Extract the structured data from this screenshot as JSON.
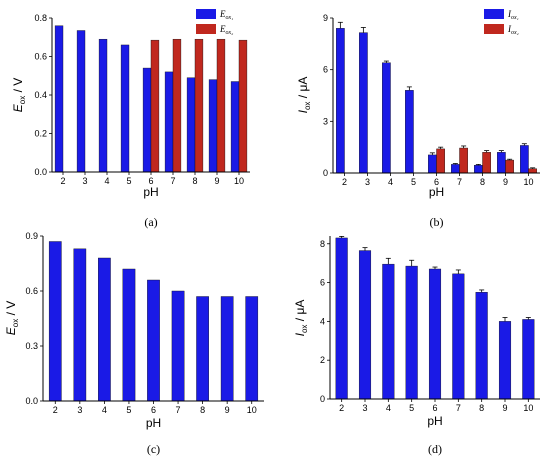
{
  "colors": {
    "blue": "#1a1ae6",
    "red": "#c0281e",
    "olive": "#6b6a10",
    "axis": "#000000"
  },
  "chart_data": [
    {
      "id": "a",
      "type": "bar",
      "panel_label": "(a)",
      "x": [
        "2",
        "3",
        "4",
        "5",
        "6",
        "7",
        "8",
        "9",
        "10"
      ],
      "xlabel": "pH",
      "ylabel_main": "E",
      "ylabel_sub": "ox",
      "ylabel_unit": " / V",
      "ylim": [
        0,
        0.8
      ],
      "yticks": [
        "0.0",
        "0.2",
        "0.4",
        "0.6",
        "0.8"
      ],
      "ytick_values": [
        0,
        0.2,
        0.4,
        0.6,
        0.8
      ],
      "grid": false,
      "legend": "top-right",
      "series": [
        {
          "legend_main": "E",
          "legend_sub": "ox₁",
          "color": "#1a1ae6",
          "values": [
            0.76,
            0.735,
            0.69,
            0.66,
            0.54,
            0.52,
            0.49,
            0.48,
            0.47
          ]
        },
        {
          "legend_main": "E",
          "legend_sub": "ox₂",
          "color": "#c0281e",
          "values": [
            null,
            null,
            null,
            null,
            0.685,
            0.69,
            0.69,
            0.69,
            0.685
          ]
        }
      ]
    },
    {
      "id": "b",
      "type": "bar",
      "panel_label": "(b)",
      "x": [
        "2",
        "3",
        "4",
        "5",
        "6",
        "7",
        "8",
        "9",
        "10"
      ],
      "xlabel": "pH",
      "ylabel_main": "I",
      "ylabel_sub": "ox",
      "ylabel_unit": " / μA",
      "ylim": [
        0,
        9
      ],
      "yticks": [
        "0",
        "3",
        "6",
        "9"
      ],
      "ytick_values": [
        0,
        3,
        6,
        9
      ],
      "grid": false,
      "legend": "top-right",
      "series": [
        {
          "legend_main": "I",
          "legend_sub": "ox₁",
          "color": "#1a1ae6",
          "values": [
            8.4,
            8.15,
            6.4,
            4.8,
            1.05,
            0.5,
            0.45,
            1.2,
            1.6
          ],
          "errors": [
            0.35,
            0.3,
            0.1,
            0.2,
            0.12,
            0.05,
            0.05,
            0.1,
            0.1
          ]
        },
        {
          "legend_main": "I",
          "legend_sub": "ox₂",
          "color": "#c0281e",
          "values": [
            null,
            null,
            null,
            null,
            1.4,
            1.45,
            1.2,
            0.75,
            0.25
          ],
          "errors": [
            null,
            null,
            null,
            null,
            0.1,
            0.12,
            0.1,
            0.05,
            0.05
          ]
        }
      ]
    },
    {
      "id": "c",
      "type": "bar",
      "panel_label": "(c)",
      "x": [
        "2",
        "3",
        "4",
        "5",
        "6",
        "7",
        "8",
        "9",
        "10"
      ],
      "xlabel": "pH",
      "ylabel_main": "E",
      "ylabel_sub": "ox",
      "ylabel_unit": " / V",
      "ylim": [
        0,
        0.9
      ],
      "yticks": [
        "0.0",
        "0.3",
        "0.6",
        "0.9"
      ],
      "ytick_values": [
        0,
        0.3,
        0.6,
        0.9
      ],
      "grid": false,
      "series": [
        {
          "color": "#1a1ae6",
          "values": [
            0.87,
            0.83,
            0.78,
            0.72,
            0.66,
            0.6,
            0.57,
            0.57,
            0.57
          ]
        }
      ]
    },
    {
      "id": "d",
      "type": "bar",
      "panel_label": "(d)",
      "x": [
        "2",
        "3",
        "4",
        "5",
        "6",
        "7",
        "8",
        "9",
        "10"
      ],
      "xlabel": "pH",
      "ylabel_main": "I",
      "ylabel_sub": "ox",
      "ylabel_unit": " / μA",
      "ylim": [
        0,
        8.4
      ],
      "yticks": [
        "0",
        "2",
        "4",
        "6",
        "8"
      ],
      "ytick_values": [
        0,
        2,
        4,
        6,
        8
      ],
      "grid": false,
      "series": [
        {
          "color": "#1a1ae6",
          "values": [
            8.3,
            7.65,
            6.95,
            6.85,
            6.7,
            6.45,
            5.5,
            4.0,
            4.1
          ],
          "errors": [
            0.08,
            0.15,
            0.3,
            0.3,
            0.1,
            0.2,
            0.12,
            0.2,
            0.1
          ]
        }
      ]
    }
  ]
}
